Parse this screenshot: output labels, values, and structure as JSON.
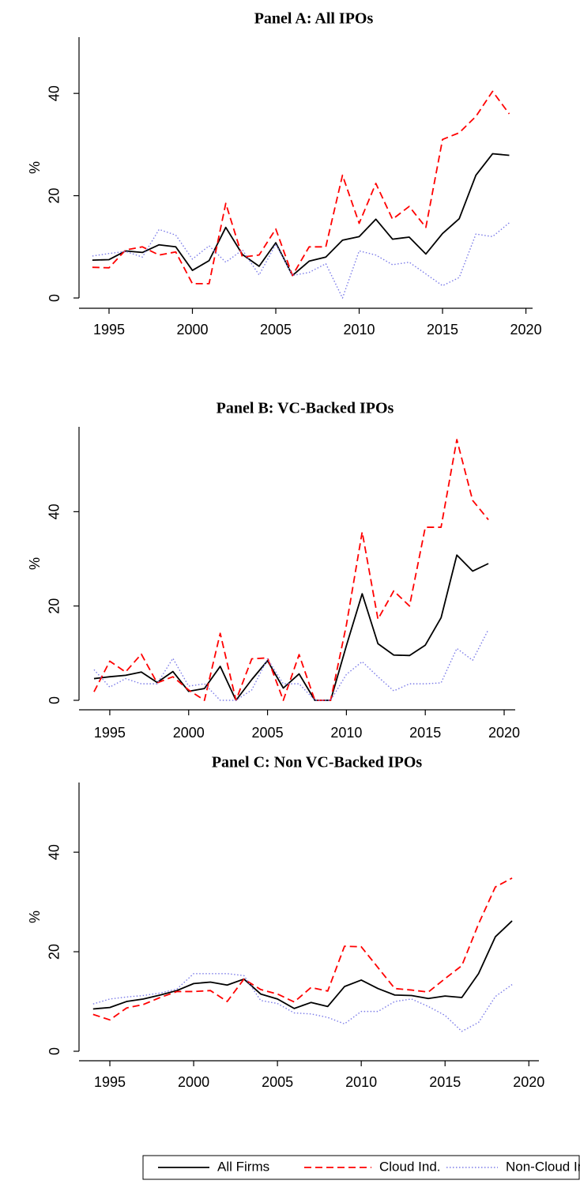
{
  "legend": [
    {
      "name": "All Firms",
      "color": "#000000",
      "style": "solid"
    },
    {
      "name": "Cloud Ind.",
      "color": "#ff0000",
      "style": "dashed"
    },
    {
      "name": "Non-Cloud Ind.",
      "color": "#7b7be8",
      "style": "dotted"
    }
  ],
  "chart_data": [
    {
      "type": "line",
      "title": "Panel A: All IPOs",
      "ylabel": "%",
      "x": [
        1994,
        1995,
        1996,
        1997,
        1998,
        1999,
        2000,
        2001,
        2002,
        2003,
        2004,
        2005,
        2006,
        2007,
        2008,
        2009,
        2010,
        2011,
        2012,
        2013,
        2014,
        2015,
        2016,
        2017,
        2018,
        2019
      ],
      "series": [
        {
          "values": [
            7.4,
            7.5,
            9.2,
            8.9,
            10.4,
            10,
            5.4,
            7.3,
            13.8,
            8.5,
            6.2,
            10.8,
            4.4,
            7.2,
            8,
            11.3,
            12,
            15.4,
            11.5,
            11.9,
            8.6,
            12.6,
            15.5,
            24,
            28.2,
            27.9
          ]
        },
        {
          "values": [
            6,
            5.9,
            9.4,
            10,
            8.4,
            9,
            2.8,
            2.8,
            18.5,
            8,
            8.4,
            13.5,
            4.4,
            10,
            10,
            24,
            14.6,
            22.4,
            15.4,
            17.9,
            13.8,
            31,
            32.3,
            35.5,
            40.4,
            36
          ]
        },
        {
          "values": [
            8.2,
            8.7,
            9.1,
            8,
            13.4,
            12.3,
            7.6,
            10.2,
            7,
            9.4,
            4.5,
            10.5,
            4.4,
            5,
            6.7,
            0,
            9.2,
            8.4,
            6.5,
            7,
            4.7,
            2.4,
            4,
            12.5,
            12,
            14.7
          ]
        }
      ],
      "xlim": [
        1993.2,
        2020.4
      ],
      "xticks": [
        1995,
        2000,
        2005,
        2010,
        2015,
        2020
      ],
      "ylim": [
        0,
        51
      ],
      "yticks": [
        0,
        20,
        40
      ]
    },
    {
      "type": "line",
      "title": "Panel B: VC-Backed IPOs",
      "ylabel": "%",
      "x": [
        1994,
        1995,
        1996,
        1997,
        1998,
        1999,
        2000,
        2001,
        2002,
        2003,
        2004,
        2005,
        2006,
        2007,
        2008,
        2009,
        2010,
        2011,
        2012,
        2013,
        2014,
        2015,
        2016,
        2017,
        2018,
        2019
      ],
      "series": [
        {
          "values": [
            4.6,
            5,
            5.3,
            6,
            3.8,
            6.1,
            1.9,
            2.5,
            7.2,
            0,
            4.4,
            8.4,
            2.6,
            5.6,
            0,
            0,
            11.6,
            22.6,
            12,
            9.6,
            9.5,
            11.7,
            17.5,
            30.8,
            27.4,
            29
          ]
        },
        {
          "values": [
            1.8,
            8.3,
            6,
            9.8,
            3.7,
            5,
            2.2,
            0,
            14.2,
            0,
            8.8,
            9,
            0,
            9.7,
            0,
            0,
            16,
            35.7,
            17.2,
            23.2,
            20,
            36.7,
            36.7,
            55.3,
            42.4,
            38.3
          ]
        },
        {
          "values": [
            6.5,
            2.8,
            4.6,
            3.5,
            3.5,
            8.9,
            3,
            3.5,
            0,
            0,
            2.2,
            8.8,
            3.5,
            3.5,
            0,
            0,
            5.5,
            8.2,
            5,
            2,
            3.5,
            3.5,
            3.7,
            11,
            8.5,
            15
          ]
        }
      ],
      "xlim": [
        1993.05,
        2020.7
      ],
      "xticks": [
        1995,
        2000,
        2005,
        2010,
        2015,
        2020
      ],
      "ylim": [
        0,
        58
      ],
      "yticks": [
        0,
        20,
        40
      ]
    },
    {
      "type": "line",
      "title": "Panel C: Non VC-Backed IPOs",
      "ylabel": "%",
      "x": [
        1994,
        1995,
        1996,
        1997,
        1998,
        1999,
        2000,
        2001,
        2002,
        2003,
        2004,
        2005,
        2006,
        2007,
        2008,
        2009,
        2010,
        2011,
        2012,
        2013,
        2014,
        2015,
        2016,
        2017,
        2018,
        2019
      ],
      "series": [
        {
          "values": [
            8.5,
            8.8,
            10,
            10.5,
            11.3,
            12.2,
            13.6,
            13.9,
            13.3,
            14.5,
            11.5,
            10.5,
            8.6,
            9.8,
            9,
            13,
            14.3,
            12.6,
            11.3,
            11.2,
            10.6,
            11.1,
            10.8,
            15.6,
            23,
            26.2
          ]
        },
        {
          "values": [
            7.4,
            6.3,
            8.7,
            9.4,
            10.8,
            12,
            12,
            12.2,
            10,
            14.5,
            12.4,
            11.5,
            9.9,
            12.8,
            12.1,
            21.1,
            21,
            16.8,
            12.6,
            12.3,
            11.9,
            14.6,
            17.2,
            25.6,
            33,
            34.8
          ]
        },
        {
          "values": [
            9.5,
            10.5,
            10.9,
            11.2,
            11.7,
            12.5,
            15.6,
            15.6,
            15.6,
            15.2,
            10.2,
            9.6,
            7.7,
            7.5,
            6.8,
            5.5,
            8,
            8,
            10,
            10.5,
            9,
            7.2,
            4,
            5.8,
            11,
            13.4
          ]
        }
      ],
      "xlim": [
        1993.16,
        2020.6
      ],
      "xticks": [
        1995,
        2000,
        2005,
        2010,
        2015,
        2020
      ],
      "ylim": [
        0,
        54
      ],
      "yticks": [
        0,
        20,
        40
      ]
    }
  ]
}
